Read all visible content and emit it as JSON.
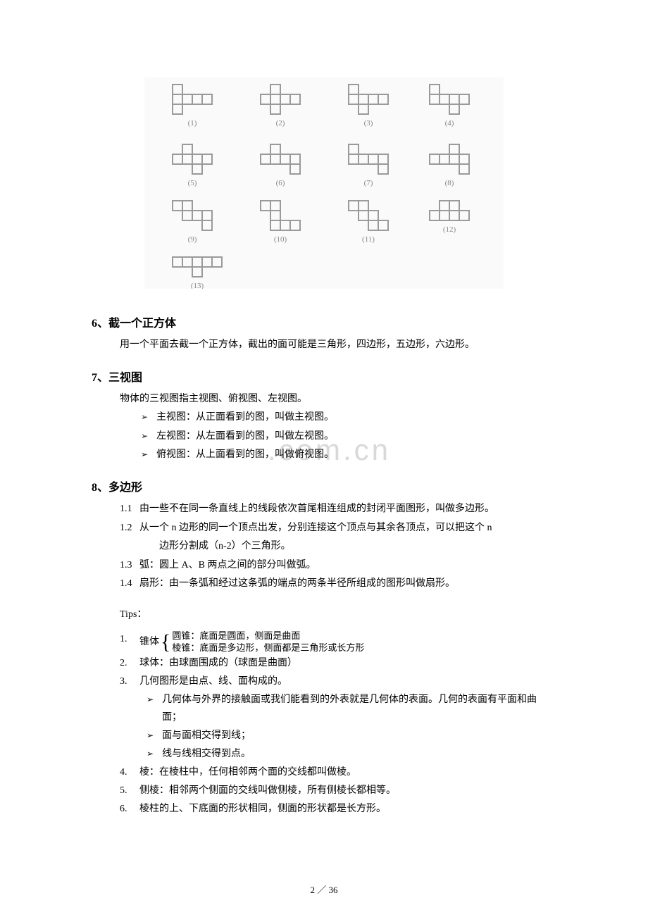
{
  "watermark": ".com.cn",
  "figure": {
    "labels": [
      "(1)",
      "(2)",
      "(3)",
      "(4)",
      "(5)",
      "(6)",
      "(7)",
      "(8)",
      "(9)",
      "(10)",
      "(11)",
      "(12)",
      "(13)"
    ],
    "line_color": "#9a9a9a",
    "cell": 14,
    "bg": "#fafafa"
  },
  "sec6": {
    "title": "6、截一个正方体",
    "body": "用一个平面去截一个正方体，截出的面可能是三角形，四边形，五边形，六边形。"
  },
  "sec7": {
    "title": "7、三视图",
    "intro": "物体的三视图指主视图、俯视图、左视图。",
    "items": [
      "主视图：从正面看到的图，叫做主视图。",
      "左视图：从左面看到的图，叫做左视图。",
      "俯视图：从上面看到的图，叫做俯视图。"
    ]
  },
  "sec8": {
    "title": "8、多边形",
    "items": [
      {
        "n": "1.1",
        "t": "由一些不在同一条直线上的线段依次首尾相连组成的封闭平面图形，叫做多边形。"
      },
      {
        "n": "1.2",
        "t": "从一个 n 边形的同一个顶点出发，分别连接这个顶点与其余各顶点，可以把这个 n",
        "t2": "边形分割成（n-2）个三角形。"
      },
      {
        "n": "1.3",
        "t": "弧：圆上 A、B 两点之间的部分叫做弧。"
      },
      {
        "n": "1.4",
        "t": "扇形：由一条弧和经过这条弧的端点的两条半径所组成的图形叫做扇形。"
      }
    ]
  },
  "tips": {
    "title": "Tips：",
    "items": [
      {
        "n": "1.",
        "type": "brace",
        "lead": "锥体",
        "lines": [
          "圆锥：底面是圆面，侧面是曲面",
          "棱锥：底面是多边形，侧面都是三角形或长方形"
        ]
      },
      {
        "n": "2.",
        "t": "球体：由球面围成的（球面是曲面）"
      },
      {
        "n": "3.",
        "t": "几何图形是由点、线、面构成的。",
        "subs": [
          "几何体与外界的接触面或我们能看到的外表就是几何体的表面。几何的表面有平面和曲面；",
          "面与面相交得到线；",
          "线与线相交得到点。"
        ]
      },
      {
        "n": "4.",
        "t": "棱：在棱柱中，任何相邻两个面的交线都叫做棱。"
      },
      {
        "n": "5.",
        "t": "侧棱：相邻两个侧面的交线叫做侧棱，所有侧棱长都相等。"
      },
      {
        "n": "6.",
        "t": "棱柱的上、下底面的形状相同，侧面的形状都是长方形。"
      }
    ]
  },
  "page": "2 ／ 36"
}
